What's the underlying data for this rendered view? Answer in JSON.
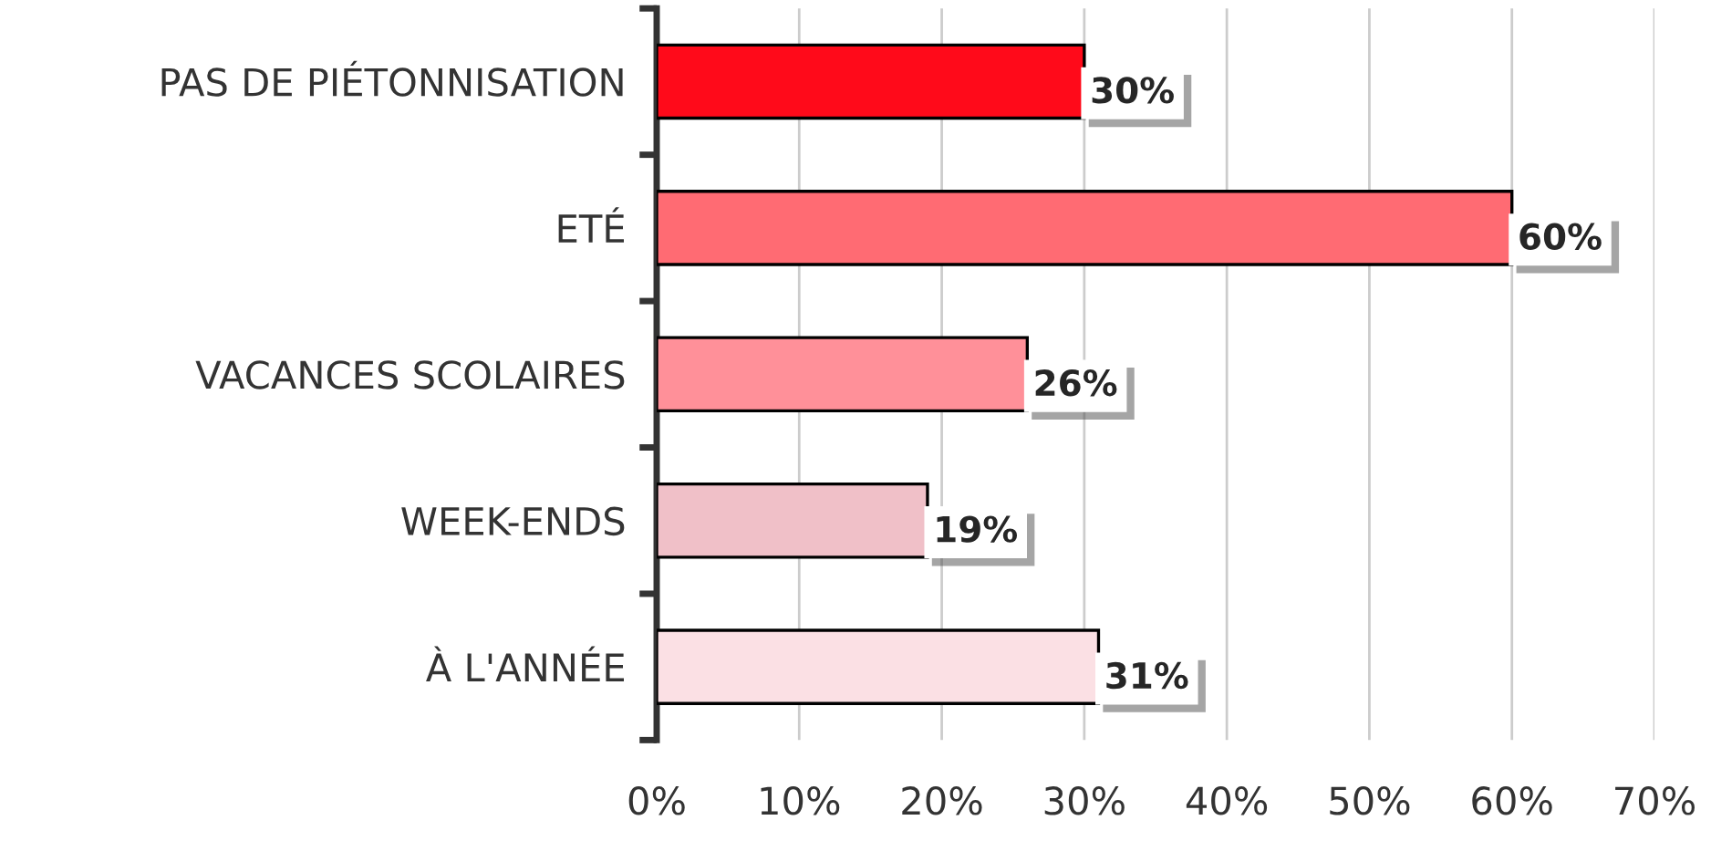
{
  "chart_data": {
    "type": "bar",
    "orientation": "horizontal",
    "categories": [
      "PAS DE PIÉTONNISATION",
      "ETÉ",
      "VACANCES SCOLAIRES",
      "WEEK-ENDS",
      "À L'ANNÉE"
    ],
    "values": [
      30,
      60,
      26,
      19,
      31
    ],
    "colors": [
      "#ff0a1a",
      "#ff6b73",
      "#ff9099",
      "#f0c0c8",
      "#fbe0e4"
    ],
    "value_labels": [
      "30%",
      "60%",
      "26%",
      "19%",
      "31%"
    ],
    "xlim": [
      0,
      70
    ],
    "xticks": [
      {
        "value": 0,
        "label": "0%"
      },
      {
        "value": 10,
        "label": "10%"
      },
      {
        "value": 20,
        "label": "20%"
      },
      {
        "value": 30,
        "label": "30%"
      },
      {
        "value": 40,
        "label": "40%"
      },
      {
        "value": 50,
        "label": "50%"
      },
      {
        "value": 60,
        "label": "60%"
      },
      {
        "value": 70,
        "label": "70%"
      }
    ],
    "grid": "x",
    "legend": false
  }
}
